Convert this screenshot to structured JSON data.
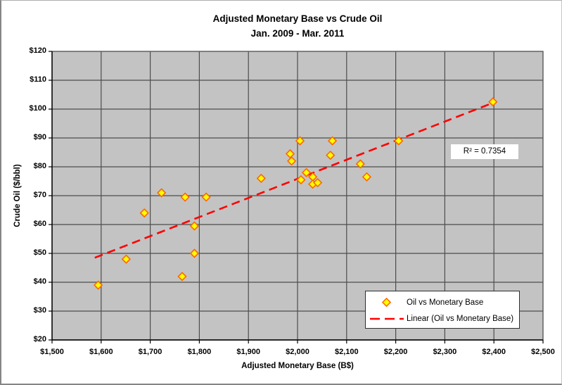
{
  "chart_data": {
    "type": "scatter",
    "title": "Adjusted Monetary Base vs Crude Oil",
    "subtitle": "Jan. 2009 - Mar. 2011",
    "xlabel": "Adjusted Monetary Base (B$)",
    "ylabel": "Crude Oil ($/bbl)",
    "xlim": [
      1500,
      2500
    ],
    "ylim": [
      20,
      120
    ],
    "x_tick_interval": 100,
    "y_tick_interval": 10,
    "x_tick_labels": [
      "$1,500",
      "$1,600",
      "$1,700",
      "$1,800",
      "$1,900",
      "$2,000",
      "$2,100",
      "$2,200",
      "$2,300",
      "$2,400",
      "$2,500"
    ],
    "y_tick_labels": [
      "$20",
      "$30",
      "$40",
      "$50",
      "$60",
      "$70",
      "$80",
      "$90",
      "$100",
      "$110",
      "$120"
    ],
    "grid": true,
    "legend_position": "inside-bottom-right",
    "series": [
      {
        "name": "Oil vs Monetary Base",
        "marker": "diamond",
        "points": [
          [
            1594,
            39
          ],
          [
            1651,
            48
          ],
          [
            1688,
            64
          ],
          [
            1723,
            71
          ],
          [
            1765,
            42
          ],
          [
            1771,
            69.5
          ],
          [
            1790,
            59.5
          ],
          [
            1790,
            50
          ],
          [
            1814,
            69.5
          ],
          [
            1926,
            76
          ],
          [
            1985,
            84.5
          ],
          [
            1988,
            82
          ],
          [
            2005,
            89
          ],
          [
            2007,
            75.5
          ],
          [
            2018,
            78
          ],
          [
            2031,
            76.5
          ],
          [
            2031,
            74
          ],
          [
            2041,
            74.5
          ],
          [
            2067,
            84
          ],
          [
            2071,
            89
          ],
          [
            2128,
            81
          ],
          [
            2141,
            76.5
          ],
          [
            2206,
            89
          ],
          [
            2398,
            102.5
          ]
        ]
      }
    ],
    "trendline": {
      "name": "Linear (Oil vs Monetary Base)",
      "type": "linear",
      "style": "dashed",
      "endpoints": [
        [
          1587,
          48.5
        ],
        [
          2400,
          102.3
        ]
      ],
      "r_squared": 0.7354,
      "r_squared_label": "R² = 0.7354"
    },
    "colors": {
      "plot_background": "#c3c3c3",
      "gridline": "#4d4d4d",
      "plot_border": "#595959",
      "axis": "#000000",
      "marker_fill": "#ffff00",
      "marker_stroke": "#ff6600",
      "trendline": "#ff0000",
      "text": "#000000"
    },
    "icons": {
      "series_marker": "diamond-icon",
      "trendline_sample": "dashed-line-icon"
    }
  }
}
